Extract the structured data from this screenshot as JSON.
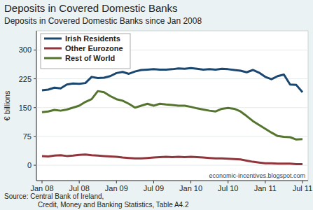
{
  "chart_data": {
    "type": "line",
    "title": "Deposits in Covered Domestic Banks",
    "subtitle": "Deposits in Covered Domestic Banks since Jan 2008",
    "y_label": "€ billions",
    "annotation": "economic-incentives.blogspot.com",
    "source": [
      "Source: Central Bank of Ireland,",
      "Credit, Money and Banking Statistics, Table A4.2"
    ],
    "categories": [
      "Jan 08",
      null,
      null,
      null,
      null,
      null,
      "Jul 08",
      null,
      null,
      null,
      null,
      null,
      "Jan 09",
      null,
      null,
      null,
      null,
      null,
      "Jul 09",
      null,
      null,
      null,
      null,
      null,
      "Jan 10",
      null,
      null,
      null,
      null,
      null,
      "Jul 10",
      null,
      null,
      null,
      null,
      null,
      "Jan 11",
      null,
      null,
      null,
      null,
      null,
      "Jul 11"
    ],
    "series": [
      {
        "name": "Irish Residents",
        "color": "#1a476f",
        "values": [
          195,
          197,
          202,
          200,
          210,
          213,
          212,
          214,
          230,
          227,
          228,
          232,
          240,
          243,
          238,
          244,
          248,
          249,
          250,
          249,
          249,
          250,
          252,
          251,
          253,
          251,
          249,
          250,
          249,
          251,
          250,
          248,
          246,
          242,
          248,
          241,
          230,
          224,
          232,
          236,
          210,
          209,
          190
        ]
      },
      {
        "name": "Other Eurozone",
        "color": "#90353b",
        "values": [
          24,
          23,
          25,
          26,
          24,
          25,
          27,
          28,
          26,
          25,
          24,
          23,
          22,
          20,
          19,
          18,
          18,
          19,
          20,
          21,
          22,
          21,
          22,
          21,
          22,
          21,
          20,
          19,
          18,
          18,
          17,
          16,
          15,
          12,
          9,
          7,
          5,
          5,
          4,
          4,
          4,
          3,
          3
        ]
      },
      {
        "name": "Rest of World",
        "color": "#55752f",
        "values": [
          138,
          140,
          144,
          142,
          145,
          150,
          155,
          165,
          172,
          193,
          190,
          180,
          172,
          168,
          160,
          150,
          155,
          160,
          155,
          160,
          158,
          157,
          155,
          155,
          152,
          148,
          145,
          142,
          140,
          147,
          149,
          147,
          140,
          128,
          115,
          105,
          95,
          85,
          76,
          74,
          73,
          67,
          68
        ]
      }
    ],
    "ylim": [
      -40,
      350
    ],
    "yticks": [
      0,
      75,
      150,
      225,
      300
    ],
    "grid": true,
    "legend": "top-left"
  }
}
